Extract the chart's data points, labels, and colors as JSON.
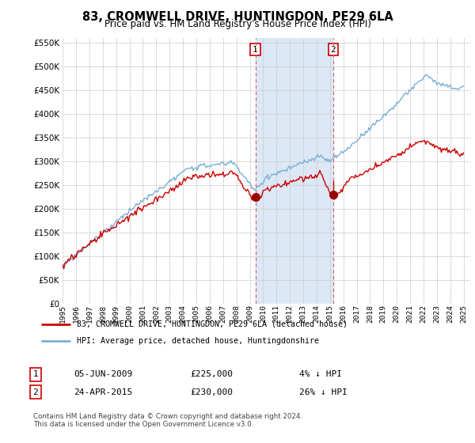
{
  "title": "83, CROMWELL DRIVE, HUNTINGDON, PE29 6LA",
  "subtitle": "Price paid vs. HM Land Registry's House Price Index (HPI)",
  "legend_line1": "83, CROMWELL DRIVE, HUNTINGDON, PE29 6LA (detached house)",
  "legend_line2": "HPI: Average price, detached house, Huntingdonshire",
  "transaction1_date": "05-JUN-2009",
  "transaction1_price": 225000,
  "transaction1_pct": "4% ↓ HPI",
  "transaction2_date": "24-APR-2015",
  "transaction2_price": 230000,
  "transaction2_pct": "26% ↓ HPI",
  "footer": "Contains HM Land Registry data © Crown copyright and database right 2024.\nThis data is licensed under the Open Government Licence v3.0.",
  "ylim": [
    0,
    560000
  ],
  "hpi_color": "#7bafd4",
  "price_color": "#cc0000",
  "marker_color": "#990000",
  "shading_color": "#dce8f5",
  "vline_color": "#cc6666",
  "grid_color": "#cccccc",
  "bg_color": "#ffffff"
}
